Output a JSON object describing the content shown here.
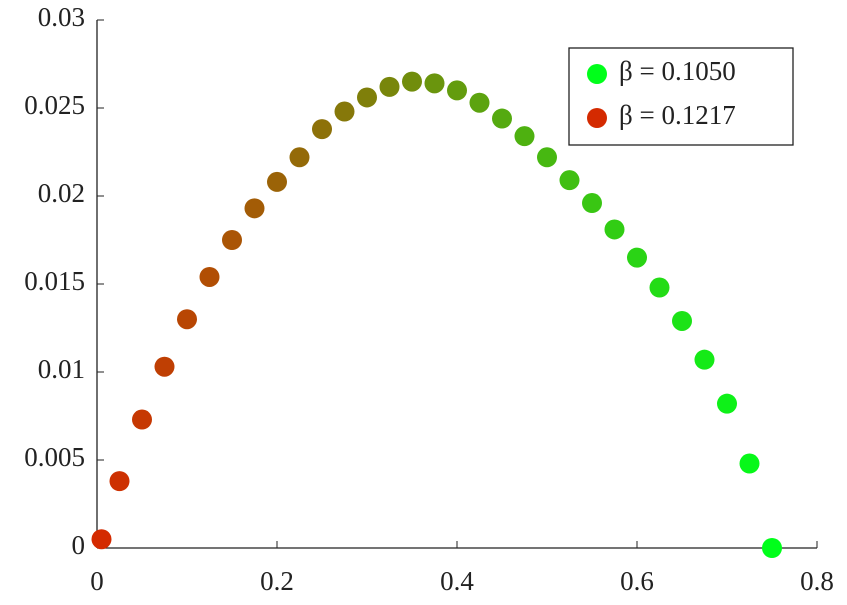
{
  "chart_data": {
    "type": "scatter",
    "x": [
      0.005,
      0.025,
      0.05,
      0.075,
      0.1,
      0.125,
      0.15,
      0.175,
      0.2,
      0.225,
      0.25,
      0.275,
      0.3,
      0.325,
      0.35,
      0.375,
      0.4,
      0.425,
      0.45,
      0.475,
      0.5,
      0.525,
      0.55,
      0.575,
      0.6,
      0.625,
      0.65,
      0.675,
      0.7,
      0.725,
      0.75
    ],
    "y": [
      0.0005,
      0.0038,
      0.0073,
      0.0103,
      0.013,
      0.0154,
      0.0175,
      0.0193,
      0.0208,
      0.0222,
      0.0238,
      0.0248,
      0.0256,
      0.0262,
      0.0265,
      0.0264,
      0.026,
      0.0253,
      0.0244,
      0.0234,
      0.0222,
      0.0209,
      0.0196,
      0.0181,
      0.0165,
      0.0148,
      0.0129,
      0.0107,
      0.0082,
      0.0048,
      0
    ],
    "series": [
      {
        "name": "β = 0.1050",
        "color": "#00ff1a"
      },
      {
        "name": "β = 0.1217",
        "color": "#d42a00"
      }
    ],
    "xlim": [
      0,
      0.8
    ],
    "xticks": [
      0,
      0.2,
      0.4,
      0.6,
      0.8
    ],
    "ylim": [
      0,
      0.03
    ],
    "yticks": [
      0,
      0.005,
      0.01,
      0.015,
      0.02,
      0.025,
      0.03
    ],
    "legend": "upper right"
  }
}
